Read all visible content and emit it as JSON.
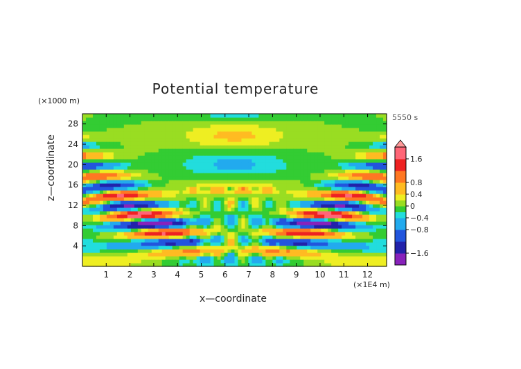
{
  "chart_data": {
    "type": "heatmap",
    "title": "Potential temperature",
    "xlabel": "x—coordinate",
    "ylabel": "z—coordinate",
    "x_unit_label": "(×1E4 m)",
    "y_unit_label": "(×1000 m)",
    "time_label": "5550 s",
    "xlim": [
      0,
      12.8
    ],
    "ylim": [
      0,
      30
    ],
    "x_ticks": [
      1,
      2,
      3,
      4,
      5,
      6,
      7,
      8,
      9,
      10,
      11,
      12
    ],
    "x_tick_labels": [
      "1",
      "2",
      "3",
      "4",
      "5",
      "6",
      "7",
      "8",
      "9",
      "10",
      "11",
      "12"
    ],
    "y_ticks": [
      4,
      8,
      12,
      16,
      20,
      24,
      28
    ],
    "y_tick_labels": [
      "4",
      "8",
      "12",
      "16",
      "20",
      "24",
      "28"
    ],
    "colorbar": {
      "range": [
        -2.0,
        2.0
      ],
      "ticks": [
        1.6,
        0.8,
        0.4,
        0,
        -0.4,
        -0.8,
        -1.6
      ],
      "tick_labels": [
        "1.6",
        "0.8",
        "0.4",
        "0",
        "−0.4",
        "−0.8",
        "−1.6"
      ],
      "extend": "both"
    },
    "colors": {
      "above_max": "#ff9999",
      "levels": [
        "#8822bb",
        "#2222aa",
        "#2255dd",
        "#22aaee",
        "#22dddd",
        "#33cc33",
        "#99dd22",
        "#eeee22",
        "#ffbb22",
        "#ff7722",
        "#ee2222",
        "#ff6677"
      ],
      "below_min": "#8822bb"
    }
  }
}
